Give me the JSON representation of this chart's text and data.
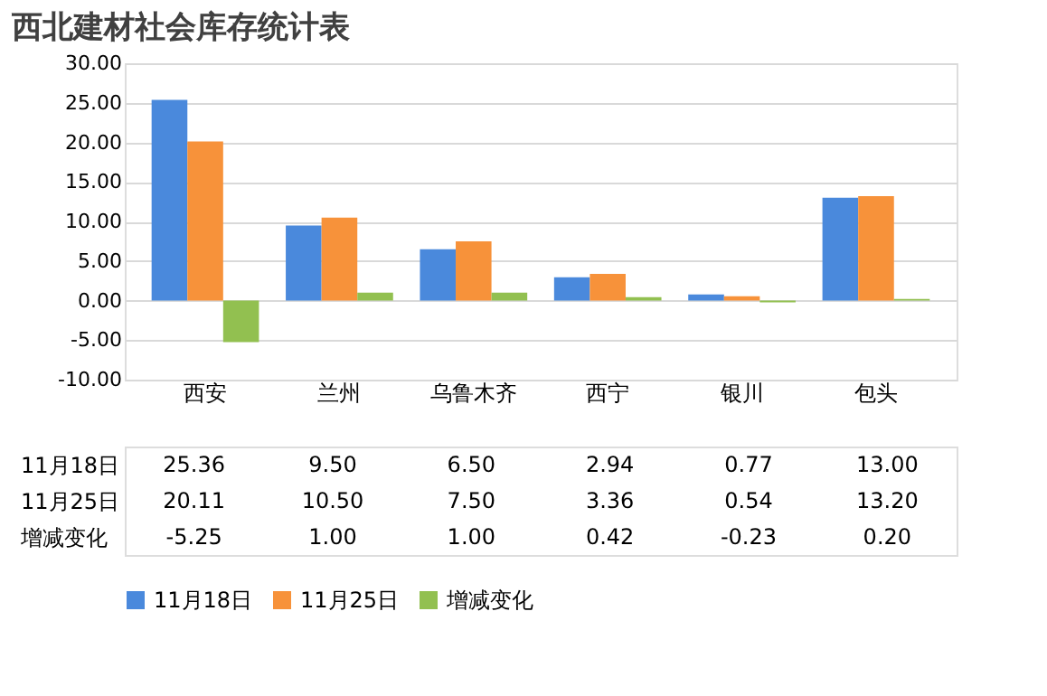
{
  "chart_data": {
    "type": "bar",
    "title": "西北建材社会库存统计表",
    "categories": [
      "西安",
      "兰州",
      "乌鲁木齐",
      "西宁",
      "银川",
      "包头"
    ],
    "series": [
      {
        "name": "11月18日",
        "color": "#4a89dc",
        "values": [
          25.36,
          9.5,
          6.5,
          2.94,
          0.77,
          13.0
        ],
        "value_labels": [
          "25.36",
          "9.50",
          "6.50",
          "2.94",
          "0.77",
          "13.00"
        ]
      },
      {
        "name": "11月25日",
        "color": "#f7923a",
        "values": [
          20.11,
          10.5,
          7.5,
          3.36,
          0.54,
          13.2
        ],
        "value_labels": [
          "20.11",
          "10.50",
          "7.50",
          "3.36",
          "0.54",
          "13.20"
        ]
      },
      {
        "name": "增减变化",
        "color": "#92c050",
        "values": [
          -5.25,
          1.0,
          1.0,
          0.42,
          -0.23,
          0.2
        ],
        "value_labels": [
          "-5.25",
          "1.00",
          "1.00",
          "0.42",
          "-0.23",
          "0.20"
        ]
      }
    ],
    "ylim": [
      -10,
      30
    ],
    "yticks": [
      {
        "value": -10,
        "label": "-10.00"
      },
      {
        "value": -5,
        "label": "-5.00"
      },
      {
        "value": 0,
        "label": "0.00"
      },
      {
        "value": 5,
        "label": "5.00"
      },
      {
        "value": 10,
        "label": "10.00"
      },
      {
        "value": 15,
        "label": "15.00"
      },
      {
        "value": 20,
        "label": "20.00"
      },
      {
        "value": 25,
        "label": "25.00"
      },
      {
        "value": 30,
        "label": "30.00"
      }
    ],
    "grid": "y",
    "legend": "bottom"
  }
}
